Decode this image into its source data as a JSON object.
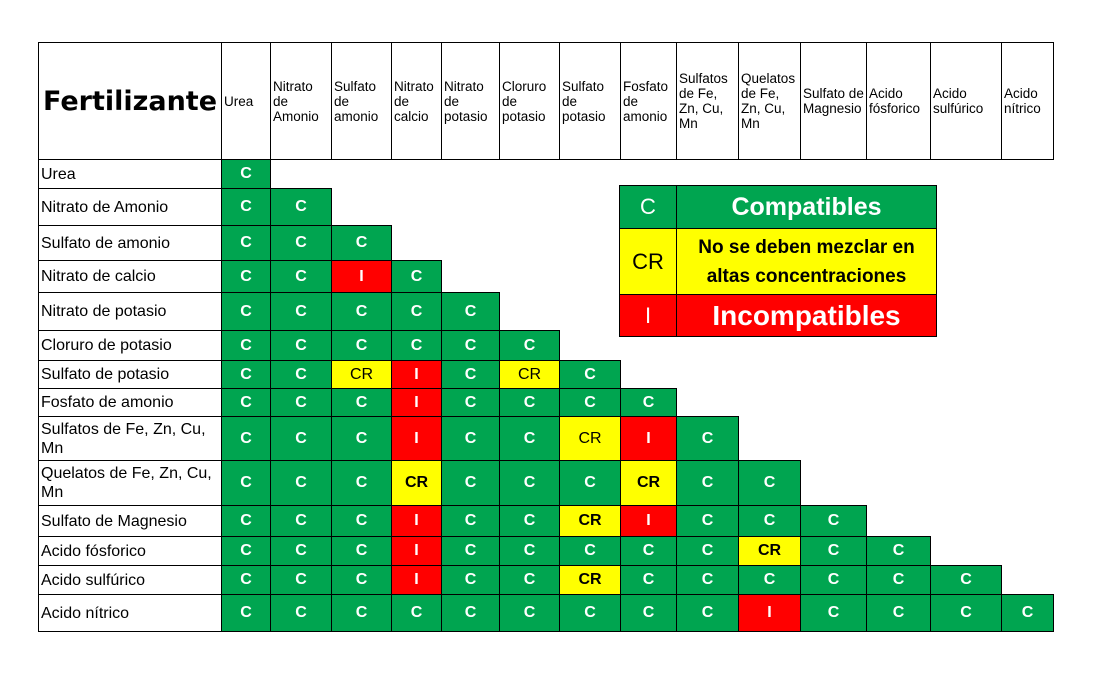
{
  "header": {
    "title": "Fertilizante",
    "columns": [
      "Urea",
      "Nitrato de Amonio",
      "Sulfato de amonio",
      "Nitrato de calcio",
      "Nitrato de potasio",
      "Cloruro de potasio",
      "Sulfato de potasio",
      "Fosfato de amonio",
      "Sulfatos de Fe, Zn, Cu, Mn",
      "Quelatos de Fe, Zn, Cu, Mn",
      "Sulfato de Magnesio",
      "Acido fósforico",
      "Acido sulfúrico",
      "Acido nítrico"
    ]
  },
  "rows": [
    {
      "label": "Urea",
      "cells": [
        "C"
      ]
    },
    {
      "label": "Nitrato de Amonio",
      "cells": [
        "C",
        "C"
      ]
    },
    {
      "label": "Sulfato de amonio",
      "cells": [
        "C",
        "C",
        "C"
      ]
    },
    {
      "label": "Nitrato de calcio",
      "cells": [
        "C",
        "C",
        "I",
        "C"
      ]
    },
    {
      "label": "Nitrato de potasio",
      "cells": [
        "C",
        "C",
        "C",
        "C",
        "C"
      ]
    },
    {
      "label": "Cloruro de potasio",
      "cells": [
        "C",
        "C",
        "C",
        "C",
        "C",
        "C"
      ]
    },
    {
      "label": "Sulfato de potasio",
      "cells": [
        "C",
        "C",
        "CR",
        "I",
        "C",
        "CR",
        "C"
      ]
    },
    {
      "label": "Fosfato de amonio",
      "cells": [
        "C",
        "C",
        "C",
        "I",
        "C",
        "C",
        "C",
        "C"
      ]
    },
    {
      "label": "Sulfatos de Fe, Zn, Cu, Mn",
      "cells": [
        "C",
        "C",
        "C",
        "I",
        "C",
        "C",
        "CR",
        "I",
        "C"
      ]
    },
    {
      "label": "Quelatos de Fe, Zn, Cu, Mn",
      "cells": [
        "C",
        "C",
        "C",
        "CR",
        "C",
        "C",
        "C",
        "CR",
        "C",
        "C"
      ]
    },
    {
      "label": "Sulfato de Magnesio",
      "cells": [
        "C",
        "C",
        "C",
        "I",
        "C",
        "C",
        "CR",
        "I",
        "C",
        "C",
        "C"
      ]
    },
    {
      "label": "Acido fósforico",
      "cells": [
        "C",
        "C",
        "C",
        "I",
        "C",
        "C",
        "C",
        "C",
        "C",
        "CR",
        "C",
        "C"
      ]
    },
    {
      "label": "Acido sulfúrico",
      "cells": [
        "C",
        "C",
        "C",
        "I",
        "C",
        "C",
        "CR",
        "C",
        "C",
        "C",
        "C",
        "C",
        "C"
      ]
    },
    {
      "label": "Acido nítrico",
      "cells": [
        "C",
        "C",
        "C",
        "C",
        "C",
        "C",
        "C",
        "C",
        "C",
        "I",
        "C",
        "C",
        "C",
        "C"
      ]
    }
  ],
  "legend": [
    {
      "symbol": "C",
      "text": "Compatibles",
      "color": "#00a550"
    },
    {
      "symbol": "CR",
      "text": "No se deben mezclar en altas concentraciones",
      "color": "#ffff00"
    },
    {
      "symbol": "I",
      "text": "Incompatibles",
      "color": "#ff0000"
    }
  ],
  "colors": {
    "compatible": "#00a550",
    "caution": "#ffff00",
    "incompatible": "#ff0000"
  }
}
